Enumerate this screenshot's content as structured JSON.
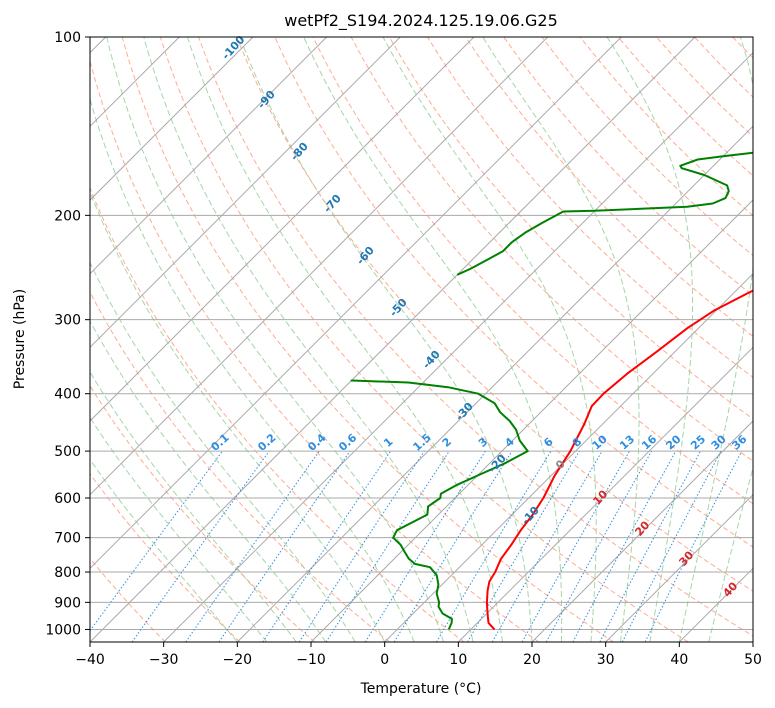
{
  "chart_data": {
    "type": "line",
    "title": "wetPf2_S194.2024.125.19.06.G25",
    "xlabel": "Temperature (°C)",
    "ylabel": "Pressure (hPa)",
    "xlim": [
      -40,
      50
    ],
    "ylim": [
      1050,
      100
    ],
    "y_scale": "log",
    "x_ticks": [
      "−40",
      "−30",
      "−20",
      "−10",
      "0",
      "10",
      "20",
      "30",
      "40",
      "50"
    ],
    "x_tick_values": [
      -40,
      -30,
      -20,
      -10,
      0,
      10,
      20,
      30,
      40,
      50
    ],
    "y_ticks": [
      "1000",
      "900",
      "800",
      "700",
      "600",
      "500",
      "400",
      "300",
      "200",
      "100"
    ],
    "y_tick_values": [
      1000,
      900,
      800,
      700,
      600,
      500,
      400,
      300,
      200,
      100
    ],
    "grid": true,
    "colors": {
      "temperature": "#ff0000",
      "dewpoint": "#008000",
      "isotherm": "#aaaaaa",
      "dry_adiabat": "#ffab91",
      "moist_adiabat": "#a5d6a7",
      "mixing_ratio": "#2e8fe0",
      "dry_label": "#1f77b4",
      "moist_label": "#d62728"
    },
    "series": [
      {
        "key": "temperature",
        "points": [
          [
            13.2,
            1000
          ],
          [
            11.5,
            975
          ],
          [
            10.5,
            950
          ],
          [
            9.5,
            925
          ],
          [
            8.5,
            900
          ],
          [
            7,
            860
          ],
          [
            6,
            830
          ],
          [
            5.5,
            800
          ],
          [
            4.5,
            760
          ],
          [
            4,
            720
          ],
          [
            3.3,
            680
          ],
          [
            2.8,
            640
          ],
          [
            2,
            600
          ],
          [
            0.5,
            550
          ],
          [
            -0.7,
            500
          ],
          [
            -2.5,
            450
          ],
          [
            -3.9,
            420
          ],
          [
            -4,
            400
          ],
          [
            -3.5,
            370
          ],
          [
            -2.5,
            340
          ],
          [
            -1.5,
            310
          ],
          [
            -0.3,
            290
          ],
          [
            2,
            270
          ],
          [
            5,
            250
          ],
          [
            8,
            230
          ],
          [
            10,
            215
          ],
          [
            11,
            200
          ],
          [
            12.5,
            190
          ],
          [
            17,
            170
          ],
          [
            21.5,
            150
          ],
          [
            24,
            140
          ],
          [
            25.5,
            133
          ],
          [
            29,
            122
          ],
          [
            31,
            115
          ],
          [
            34,
            108
          ],
          [
            37,
            100
          ]
        ]
      },
      {
        "key": "dewpoint",
        "points": [
          [
            7,
            1000
          ],
          [
            6.5,
            975
          ],
          [
            6,
            960
          ],
          [
            4,
            940
          ],
          [
            2.5,
            915
          ],
          [
            2,
            900
          ],
          [
            0.5,
            870
          ],
          [
            -0.5,
            840
          ],
          [
            -2,
            810
          ],
          [
            -4,
            785
          ],
          [
            -6.5,
            775
          ],
          [
            -8,
            760
          ],
          [
            -9.5,
            740
          ],
          [
            -11,
            720
          ],
          [
            -13,
            700
          ],
          [
            -13.5,
            680
          ],
          [
            -12.5,
            660
          ],
          [
            -11.5,
            640
          ],
          [
            -12,
            630
          ],
          [
            -12.5,
            620
          ],
          [
            -12,
            600
          ],
          [
            -12.5,
            590
          ],
          [
            -11.5,
            570
          ],
          [
            -10,
            550
          ],
          [
            -8,
            525
          ],
          [
            -6.5,
            500
          ],
          [
            -9,
            480
          ],
          [
            -11,
            460
          ],
          [
            -13,
            445
          ],
          [
            -15.5,
            430
          ],
          [
            -17.5,
            415
          ],
          [
            -21,
            400
          ],
          [
            -26,
            390
          ],
          [
            -32,
            383
          ],
          [
            -40,
            380
          ],
          [
            -40.1,
            379
          ]
        ]
      },
      {
        "key": "dewpoint_upper",
        "points": [
          [
            -40,
            252
          ],
          [
            -39,
            246
          ],
          [
            -38,
            238
          ],
          [
            -37,
            230
          ],
          [
            -37,
            222
          ],
          [
            -36.5,
            214
          ],
          [
            -35.5,
            206
          ],
          [
            -34.2,
            197
          ],
          [
            -30,
            196.5
          ],
          [
            -24,
            195
          ],
          [
            -18,
            193.5
          ],
          [
            -15,
            191
          ],
          [
            -14,
            187
          ],
          [
            -14.5,
            182
          ],
          [
            -15.5,
            178
          ],
          [
            -20,
            171
          ],
          [
            -24,
            166.5
          ],
          [
            -24.5,
            165
          ],
          [
            -23,
            161
          ],
          [
            -20,
            159
          ],
          [
            -15,
            156
          ],
          [
            -12,
            151
          ],
          [
            -10,
            147
          ],
          [
            -8.5,
            140
          ],
          [
            -8,
            135
          ],
          [
            -7.5,
            128
          ],
          [
            -6.5,
            120
          ],
          [
            -5,
            114
          ],
          [
            -3,
            108
          ],
          [
            -1,
            103
          ],
          [
            -0.5,
            100
          ]
        ]
      }
    ],
    "mixing_ratio_labels": [
      "0.1",
      "0.2",
      "0.4",
      "0.6",
      "1",
      "1.5",
      "2",
      "3",
      "4",
      "6",
      "8",
      "10",
      "13",
      "16",
      "20",
      "25",
      "30",
      "36"
    ],
    "mixing_ratio_values": [
      0.1,
      0.2,
      0.4,
      0.6,
      1,
      1.5,
      2,
      3,
      4,
      6,
      8,
      10,
      13,
      16,
      20,
      25,
      30,
      36
    ],
    "dry_adiabat_labels": [
      "-100",
      "-90",
      "-80",
      "-70",
      "-60",
      "-50",
      "-40",
      "-30",
      "-20",
      "-10",
      "0"
    ],
    "moist_adiabat_labels": [
      "10",
      "20",
      "30",
      "40"
    ]
  }
}
